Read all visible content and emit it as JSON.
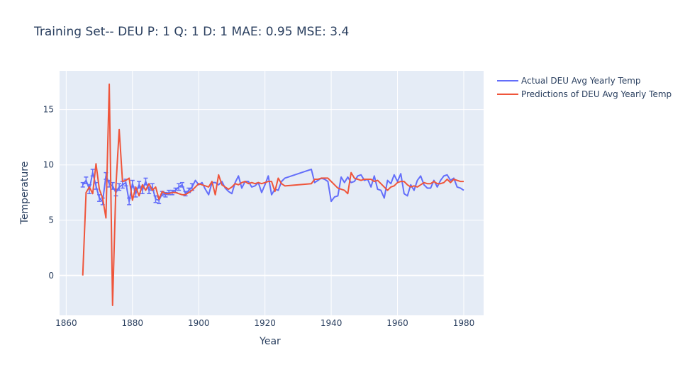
{
  "chart_data": {
    "type": "line",
    "title": "Training Set-- DEU P: 1 Q: 1 D: 1  MAE: 0.95 MSE: 3.4",
    "xlabel": "Year",
    "ylabel": "Temperature",
    "xlim": [
      1858,
      1986
    ],
    "ylim": [
      -3.6,
      18.5
    ],
    "xticks": [
      "1860",
      "1880",
      "1900",
      "1920",
      "1940",
      "1960",
      "1980"
    ],
    "yticks": [
      "0",
      "5",
      "10",
      "15"
    ],
    "grid": true,
    "legend_position": "top-right",
    "colors": {
      "background": "#e5ecf6",
      "grid": "#ffffff",
      "actual": "#636efa",
      "predicted": "#ef553b"
    },
    "series": [
      {
        "name": "Actual DEU Avg Yearly Temp",
        "x": [
          1865,
          1866,
          1867,
          1868,
          1869,
          1870,
          1871,
          1872,
          1873,
          1874,
          1875,
          1876,
          1877,
          1878,
          1879,
          1880,
          1881,
          1882,
          1883,
          1884,
          1885,
          1886,
          1887,
          1888,
          1889,
          1890,
          1891,
          1892,
          1893,
          1894,
          1895,
          1896,
          1897,
          1898,
          1899,
          1900,
          1901,
          1902,
          1903,
          1904,
          1905,
          1906,
          1907,
          1908,
          1909,
          1910,
          1911,
          1912,
          1913,
          1914,
          1915,
          1916,
          1917,
          1918,
          1919,
          1920,
          1921,
          1922,
          1923,
          1924,
          1925,
          1926,
          1934,
          1935,
          1936,
          1937,
          1938,
          1939,
          1940,
          1941,
          1942,
          1943,
          1944,
          1945,
          1946,
          1947,
          1948,
          1949,
          1950,
          1951,
          1952,
          1953,
          1954,
          1955,
          1956,
          1957,
          1958,
          1959,
          1960,
          1961,
          1962,
          1963,
          1964,
          1965,
          1966,
          1967,
          1968,
          1969,
          1970,
          1971,
          1972,
          1973,
          1974,
          1975,
          1976,
          1977,
          1978,
          1979,
          1980
        ],
        "y": [
          8.2,
          8.6,
          7.8,
          9.3,
          8.1,
          7.0,
          6.7,
          9.0,
          8.3,
          8.1,
          7.5,
          8.0,
          8.2,
          8.4,
          6.7,
          8.3,
          7.4,
          8.2,
          7.7,
          8.5,
          7.7,
          8.0,
          6.9,
          6.8,
          7.4,
          7.3,
          7.5,
          7.5,
          7.7,
          8.0,
          8.2,
          7.4,
          7.7,
          8.0,
          8.6,
          8.2,
          8.4,
          7.8,
          7.3,
          8.4,
          8.4,
          8.2,
          8.5,
          7.9,
          7.6,
          7.4,
          8.4,
          9.0,
          7.9,
          8.5,
          8.5,
          8.0,
          8.1,
          8.4,
          7.5,
          8.2,
          9.0,
          7.3,
          7.8,
          7.7,
          8.5,
          8.8,
          9.6,
          8.4,
          8.6,
          8.8,
          8.7,
          8.5,
          6.7,
          7.1,
          7.2,
          8.9,
          8.4,
          8.9,
          8.4,
          8.5,
          9.0,
          9.1,
          8.6,
          8.7,
          8.0,
          9.0,
          7.8,
          7.7,
          7.0,
          8.6,
          8.3,
          9.1,
          8.5,
          9.2,
          7.4,
          7.2,
          8.2,
          7.7,
          8.6,
          9.0,
          8.2,
          7.9,
          7.9,
          8.6,
          8.0,
          8.6,
          9.0,
          9.1,
          8.6,
          8.8,
          8.0,
          7.9,
          7.7
        ]
      },
      {
        "name": "Predictions of DEU Avg Yearly Temp",
        "x": [
          1865,
          1866,
          1867,
          1868,
          1869,
          1870,
          1871,
          1872,
          1873,
          1874,
          1875,
          1876,
          1877,
          1878,
          1879,
          1880,
          1881,
          1882,
          1883,
          1884,
          1885,
          1886,
          1887,
          1888,
          1889,
          1890,
          1891,
          1892,
          1893,
          1894,
          1895,
          1896,
          1897,
          1898,
          1899,
          1900,
          1901,
          1902,
          1903,
          1904,
          1905,
          1906,
          1907,
          1908,
          1909,
          1910,
          1911,
          1912,
          1913,
          1914,
          1915,
          1916,
          1917,
          1918,
          1919,
          1920,
          1921,
          1922,
          1923,
          1924,
          1925,
          1926,
          1934,
          1935,
          1936,
          1937,
          1938,
          1939,
          1940,
          1941,
          1942,
          1943,
          1944,
          1945,
          1946,
          1947,
          1948,
          1949,
          1950,
          1951,
          1952,
          1953,
          1954,
          1955,
          1956,
          1957,
          1958,
          1959,
          1960,
          1961,
          1962,
          1963,
          1964,
          1965,
          1966,
          1967,
          1968,
          1969,
          1970,
          1971,
          1972,
          1973,
          1974,
          1975,
          1976,
          1977,
          1978,
          1979,
          1980
        ],
        "y": [
          0.0,
          7.5,
          8.0,
          7.4,
          10.1,
          7.8,
          7.0,
          5.2,
          17.3,
          -2.7,
          8.0,
          13.2,
          8.5,
          8.6,
          8.8,
          6.8,
          8.0,
          7.2,
          8.2,
          7.7,
          8.3,
          7.7,
          8.0,
          6.9,
          7.6,
          7.4,
          7.4,
          7.5,
          7.5,
          7.4,
          7.3,
          7.3,
          7.5,
          7.7,
          8.0,
          8.3,
          8.2,
          8.1,
          8.0,
          8.5,
          7.3,
          9.1,
          8.2,
          8.0,
          7.8,
          8.0,
          8.3,
          8.2,
          8.4,
          8.5,
          8.3,
          8.4,
          8.3,
          8.4,
          8.3,
          8.4,
          8.5,
          8.5,
          7.6,
          8.8,
          8.3,
          8.1,
          8.3,
          8.7,
          8.7,
          8.8,
          8.8,
          8.8,
          8.5,
          8.2,
          7.9,
          7.8,
          7.7,
          7.4,
          9.3,
          8.8,
          8.7,
          8.6,
          8.7,
          8.7,
          8.7,
          8.5,
          8.6,
          8.3,
          8.0,
          7.7,
          8.0,
          8.1,
          8.4,
          8.5,
          8.5,
          8.2,
          8.0,
          8.1,
          8.0,
          8.2,
          8.4,
          8.3,
          8.3,
          8.5,
          8.3,
          8.3,
          8.4,
          8.7,
          8.4,
          8.7,
          8.6,
          8.5,
          8.5
        ]
      }
    ],
    "error_bars": {
      "series": "Actual DEU Avg Yearly Temp",
      "x": [
        1865,
        1866,
        1867,
        1868,
        1869,
        1870,
        1871,
        1872,
        1873,
        1874,
        1875,
        1876,
        1877,
        1878,
        1879,
        1880,
        1881,
        1882,
        1883,
        1884,
        1885,
        1886,
        1887,
        1888,
        1889,
        1890,
        1891,
        1892,
        1893,
        1894,
        1895,
        1896,
        1897,
        1898
      ],
      "err": [
        0.2,
        0.3,
        0.4,
        0.3,
        0.3,
        0.3,
        0.3,
        0.3,
        0.3,
        0.3,
        0.3,
        0.3,
        0.3,
        0.3,
        0.3,
        0.3,
        0.3,
        0.3,
        0.3,
        0.3,
        0.3,
        0.3,
        0.3,
        0.3,
        0.2,
        0.2,
        0.2,
        0.2,
        0.2,
        0.3,
        0.2,
        0.2,
        0.2,
        0.3
      ]
    }
  }
}
